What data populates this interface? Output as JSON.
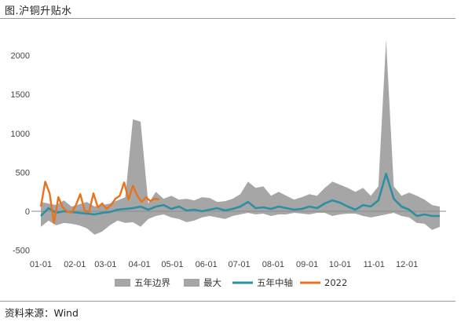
{
  "title": "图.沪铜升贴水",
  "source": "资料来源：Wind",
  "chart_data": {
    "type": "area",
    "ylim": [
      -500,
      2300
    ],
    "yticks": [
      -500,
      0,
      500,
      1000,
      1500,
      2000
    ],
    "x_tick_labels": [
      "01-01",
      "02-01",
      "03-01",
      "04-01",
      "05-01",
      "06-01",
      "07-01",
      "08-01",
      "09-01",
      "10-01",
      "11-01",
      "12-01"
    ],
    "legend_position": "bottom",
    "grid": false,
    "colors": {
      "band": "#a6a6a6",
      "median": "#2e8fa3",
      "y2022": "#e8731c"
    },
    "series": [
      {
        "name": "五年边界",
        "kind": "area-lower",
        "x": [
          1,
          8,
          15,
          22,
          29,
          36,
          43,
          50,
          57,
          64,
          71,
          78,
          85,
          92,
          99,
          106,
          113,
          120,
          127,
          134,
          141,
          148,
          155,
          162,
          169,
          176,
          183,
          190,
          197,
          204,
          211,
          218,
          225,
          232,
          239,
          246,
          253,
          260,
          267,
          274,
          281,
          288,
          295,
          302,
          309,
          316,
          323,
          330,
          337,
          344,
          351,
          358,
          365
        ],
        "values": [
          -200,
          -120,
          -180,
          -150,
          -160,
          -180,
          -220,
          -300,
          -260,
          -180,
          -120,
          -150,
          -140,
          -200,
          -100,
          -60,
          -40,
          -80,
          -100,
          -140,
          -120,
          -80,
          -60,
          -80,
          -100,
          -60,
          -40,
          -20,
          -40,
          -30,
          -60,
          -40,
          -40,
          -20,
          -30,
          -40,
          -20,
          -20,
          -60,
          -40,
          -30,
          -30,
          -60,
          -80,
          -60,
          -40,
          -20,
          -60,
          -80,
          -150,
          -160,
          -240,
          -200
        ]
      },
      {
        "name": "最大",
        "kind": "area-upper",
        "x": [
          1,
          8,
          15,
          22,
          29,
          36,
          43,
          50,
          57,
          64,
          71,
          78,
          85,
          92,
          99,
          106,
          113,
          120,
          127,
          134,
          141,
          148,
          155,
          162,
          169,
          176,
          183,
          190,
          197,
          204,
          211,
          218,
          225,
          232,
          239,
          246,
          253,
          260,
          267,
          274,
          281,
          288,
          295,
          302,
          309,
          316,
          323,
          330,
          337,
          344,
          351,
          358,
          365
        ],
        "values": [
          120,
          100,
          80,
          140,
          60,
          90,
          120,
          60,
          80,
          100,
          140,
          180,
          1180,
          1150,
          100,
          250,
          160,
          200,
          150,
          160,
          140,
          180,
          170,
          120,
          130,
          160,
          220,
          380,
          300,
          320,
          200,
          250,
          200,
          150,
          180,
          220,
          200,
          300,
          380,
          340,
          300,
          250,
          300,
          200,
          320,
          2200,
          320,
          200,
          240,
          200,
          150,
          80,
          60
        ]
      },
      {
        "name": "五年中轴",
        "x": [
          1,
          8,
          15,
          22,
          29,
          36,
          43,
          50,
          57,
          64,
          71,
          78,
          85,
          92,
          99,
          106,
          113,
          120,
          127,
          134,
          141,
          148,
          155,
          162,
          169,
          176,
          183,
          190,
          197,
          204,
          211,
          218,
          225,
          232,
          239,
          246,
          253,
          260,
          267,
          274,
          281,
          288,
          295,
          302,
          309,
          316,
          323,
          330,
          337,
          344,
          351,
          358,
          365
        ],
        "values": [
          -60,
          40,
          -20,
          0,
          -10,
          -20,
          -30,
          -40,
          -20,
          -10,
          20,
          30,
          40,
          60,
          20,
          60,
          80,
          30,
          60,
          10,
          20,
          0,
          20,
          40,
          10,
          30,
          60,
          120,
          40,
          50,
          30,
          60,
          40,
          20,
          30,
          60,
          40,
          100,
          140,
          110,
          60,
          20,
          80,
          60,
          140,
          480,
          160,
          60,
          20,
          -60,
          -40,
          -60,
          -60
        ]
      },
      {
        "name": "2022",
        "x": [
          1,
          5,
          9,
          13,
          17,
          21,
          25,
          29,
          33,
          37,
          41,
          45,
          49,
          53,
          57,
          61,
          65,
          69,
          73,
          77,
          81,
          85,
          89,
          93,
          97,
          101,
          105,
          109
        ],
        "values": [
          60,
          380,
          230,
          -150,
          180,
          50,
          0,
          -20,
          80,
          220,
          10,
          -10,
          230,
          50,
          100,
          30,
          80,
          160,
          200,
          370,
          150,
          330,
          200,
          120,
          180,
          130,
          160,
          150
        ]
      }
    ]
  }
}
